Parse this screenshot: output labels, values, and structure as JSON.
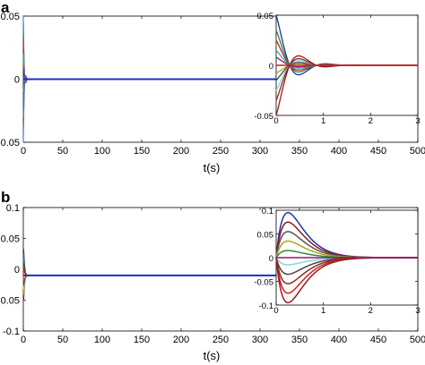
{
  "chart_data": [
    {
      "panel": "a",
      "type": "line",
      "xlabel": "t(s)",
      "ylabel": "",
      "xlim": [
        0,
        500
      ],
      "ylim": [
        -0.05,
        0.05
      ],
      "x_ticks": [
        "0",
        "50",
        "100",
        "150",
        "200",
        "250",
        "300",
        "350",
        "400",
        "450",
        "500"
      ],
      "y_ticks": [
        "0.05",
        "0",
        "-0.05"
      ],
      "colors": [
        "#3a6fd9",
        "#2d8a3a",
        "#cc2222",
        "#23b7b7",
        "#a01070",
        "#a6a61e",
        "#444444",
        "#7fd3e6",
        "#8b2c1b"
      ],
      "series_note_values": [
        0.05,
        0.04,
        0.03,
        0.02,
        0.01,
        -0.01,
        -0.02,
        -0.03,
        -0.04,
        -0.05
      ],
      "inset": {
        "xlim": [
          0,
          3
        ],
        "ylim": [
          -0.05,
          0.05
        ],
        "x_ticks": [
          "0",
          "1",
          "2",
          "3"
        ],
        "y_ticks": [
          "0.05",
          "0",
          "-0.05"
        ],
        "initial_values": [
          0.05,
          0.035,
          0.025,
          0.015,
          0.008,
          -0.008,
          -0.015,
          -0.025,
          -0.035,
          -0.05
        ]
      }
    },
    {
      "panel": "b",
      "type": "line",
      "xlabel": "t(s)",
      "ylabel": "",
      "xlim": [
        0,
        500
      ],
      "ylim": [
        -0.1,
        0.1
      ],
      "x_ticks": [
        "0",
        "50",
        "100",
        "150",
        "200",
        "250",
        "300",
        "350",
        "400",
        "450",
        "500"
      ],
      "y_ticks": [
        "0.1",
        "0.05",
        "0",
        "-0.05",
        "-0.1"
      ],
      "colors": [
        "#2233aa",
        "#8b1a1a",
        "#555555",
        "#a6a61e",
        "#2d8a3a",
        "#7fd3e6",
        "#444444",
        "#8b2c1b",
        "#cc2222"
      ],
      "inset": {
        "xlim": [
          0,
          3
        ],
        "ylim": [
          -0.1,
          0.1
        ],
        "x_ticks": [
          "0",
          "1",
          "2",
          "3"
        ],
        "y_ticks": [
          "0.1",
          "0.05",
          "0",
          "-0.05",
          "-0.1"
        ],
        "peak_values": [
          0.095,
          0.075,
          0.055,
          0.035,
          0.015,
          -0.015,
          -0.035,
          -0.055,
          -0.075,
          -0.095
        ],
        "peak_time": 0.25
      }
    }
  ]
}
